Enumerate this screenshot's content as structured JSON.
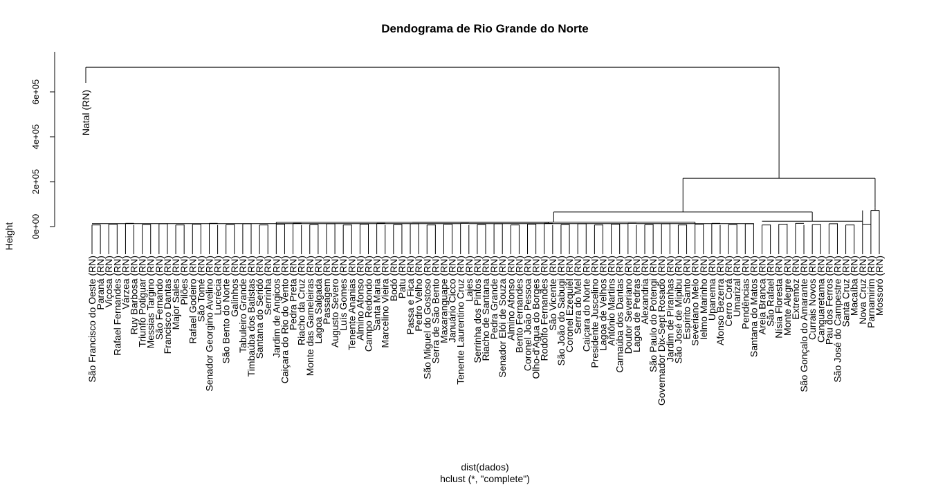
{
  "chart_data": {
    "type": "dendrogram",
    "title": "Dendograma de Rio Grande do Norte",
    "xlabel": "dist(dados)",
    "sublabel": "hclust (*, \"complete\")",
    "ylabel": "Height",
    "ylim": [
      0,
      700000
    ],
    "yticks": [
      {
        "value": 0,
        "label": "0e+00"
      },
      {
        "value": 200000,
        "label": "2e+05"
      },
      {
        "value": 400000,
        "label": "4e+05"
      },
      {
        "value": 600000,
        "label": "6e+05"
      }
    ],
    "root_height": 710000,
    "isolated_leaf": {
      "label": "Natal (RN)",
      "attach_height": 640000
    },
    "sub_merge_heights": {
      "rest": 215000,
      "core_block": 65000,
      "block_a": 20000,
      "right_small": 85000
    },
    "leaves": [
      "São Francisco do Oeste (RN)",
      "Paraná (RN)",
      "Viçosa (RN)",
      "Rafael Fernandes (RN)",
      "Várzea (RN)",
      "Ruy Barbosa (RN)",
      "Triunfo Potiguar (RN)",
      "Messias Targino (RN)",
      "São Fernando (RN)",
      "Francisco Dantas (RN)",
      "Major Sales (RN)",
      "Pilões (RN)",
      "Rafael Godeiro (RN)",
      "São Tomé (RN)",
      "Senador Georgino Avelino (RN)",
      "Lucrécia (RN)",
      "São Bento do Norte (RN)",
      "Galinhos (RN)",
      "Tabuleiro Grande (RN)",
      "Timbaúba dos Batistas (RN)",
      "Santana do Seridó (RN)",
      "Serrinha (RN)",
      "Jardim de Angicos (RN)",
      "Caiçara do Rio do Vento (RN)",
      "Pedra Preta (RN)",
      "Riacho da Cruz (RN)",
      "Monte das Gameleiras (RN)",
      "Lagoa Salgada (RN)",
      "Passagem (RN)",
      "Augusto Severo (RN)",
      "Luís Gomes (RN)",
      "Tenente Ananias (RN)",
      "Almino Afonso (RN)",
      "Campo Redondo (RN)",
      "Santa Maria (RN)",
      "Marcelino Vieira (RN)",
      "Bodó (RN)",
      "Patu (RN)",
      "Passa e Fica (RN)",
      "Pedro Velho (RN)",
      "São Miguel do Gostoso (RN)",
      "Serra de São Bento (RN)",
      "Maxaranguape (RN)",
      "Januário Cicco (RN)",
      "Tenente Laurentino Cruz (RN)",
      "Lajes (RN)",
      "Serrinha dos Pintos (RN)",
      "Riacho de Santana (RN)",
      "Pedra Grande (RN)",
      "Senador Elói de Souza (RN)",
      "Almino Afonso (RN)",
      "Bento Fernandes (RN)",
      "Coronel João Pessoa (RN)",
      "Olho-d'Água do Borges (RN)",
      "Rodolfo Fernandes (RN)",
      "São Vicente (RN)",
      "São João do Sabugi (RN)",
      "Coronel Ezequiel (RN)",
      "Serra do Mel (RN)",
      "Caiçara do Norte (RN)",
      "Presidente Juscelino (RN)",
      "Lagoa de Velhos (RN)",
      "Antônio Martins (RN)",
      "Carnaúba dos Dantas (RN)",
      "Doutor Severiano (RN)",
      "Lagoa de Pedras (RN)",
      "Alexandria (RN)",
      "São Paulo do Potengi (RN)",
      "Governador Dix-Sept Rosado (RN)",
      "Jardim de Piranhas (RN)",
      "São José de Mipibu (RN)",
      "Espírito Santo (RN)",
      "Severiano Melo (RN)",
      "Ielmo Marinho (RN)",
      "Upanema (RN)",
      "Afonso Bezerra (RN)",
      "Cerro Corá (RN)",
      "Umarizal (RN)",
      "Pendências (RN)",
      "Santana do Matos (RN)",
      "Areia Branca (RN)",
      "São Rafael (RN)",
      "Nísia Floresta (RN)",
      "Monte Alegre (RN)",
      "Extremoz (RN)",
      "São Gonçalo do Amarante (RN)",
      "Currais Novos (RN)",
      "Canguaretama (RN)",
      "Pau dos Ferros (RN)",
      "São José do Campestre (RN)",
      "Santa Cruz (RN)",
      "Macaíba (RN)",
      "Nova Cruz (RN)",
      "Parnamirim (RN)",
      "Mossoró (RN)"
    ]
  }
}
